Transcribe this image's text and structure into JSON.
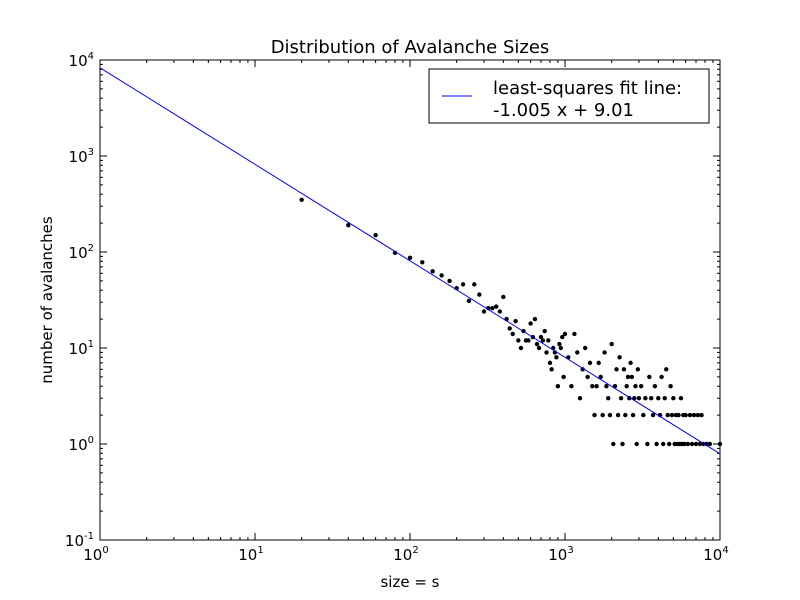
{
  "chart_data": {
    "type": "scatter",
    "title": "Distribution of Avalanche Sizes",
    "xlabel": "size = s",
    "ylabel": "number of avalanches",
    "xscale": "log",
    "yscale": "log",
    "xlim": [
      1,
      10000
    ],
    "ylim": [
      0.1,
      10000
    ],
    "x_ticks": [
      {
        "base": "10",
        "exp": "0",
        "value": 1
      },
      {
        "base": "10",
        "exp": "1",
        "value": 10
      },
      {
        "base": "10",
        "exp": "2",
        "value": 100
      },
      {
        "base": "10",
        "exp": "3",
        "value": 1000
      },
      {
        "base": "10",
        "exp": "4",
        "value": 10000
      }
    ],
    "y_ticks": [
      {
        "base": "10",
        "exp": "-1",
        "value": 0.1
      },
      {
        "base": "10",
        "exp": "0",
        "value": 1
      },
      {
        "base": "10",
        "exp": "1",
        "value": 10
      },
      {
        "base": "10",
        "exp": "2",
        "value": 100
      },
      {
        "base": "10",
        "exp": "3",
        "value": 1000
      },
      {
        "base": "10",
        "exp": "4",
        "value": 10000
      }
    ],
    "grid": false,
    "legend_position": "top-right",
    "colors": {
      "fit_line": "#0000ff",
      "points": "#000000"
    },
    "fit_line": {
      "legend_line1": "least-squares fit line:",
      "legend_line2": "-1.005 x + 9.01",
      "x": [
        1,
        10000
      ],
      "y": [
        8300,
        0.79
      ]
    },
    "points": [
      [
        20,
        350
      ],
      [
        40,
        190
      ],
      [
        60,
        150
      ],
      [
        80,
        98
      ],
      [
        100,
        87
      ],
      [
        120,
        78
      ],
      [
        140,
        63
      ],
      [
        160,
        57
      ],
      [
        180,
        50
      ],
      [
        200,
        42
      ],
      [
        220,
        46
      ],
      [
        240,
        31
      ],
      [
        260,
        46
      ],
      [
        280,
        36
      ],
      [
        300,
        24
      ],
      [
        320,
        26
      ],
      [
        340,
        26
      ],
      [
        360,
        27
      ],
      [
        380,
        24
      ],
      [
        400,
        34
      ],
      [
        420,
        20
      ],
      [
        440,
        16
      ],
      [
        460,
        14
      ],
      [
        480,
        19
      ],
      [
        500,
        12
      ],
      [
        520,
        10
      ],
      [
        540,
        15
      ],
      [
        560,
        12
      ],
      [
        580,
        12
      ],
      [
        600,
        18
      ],
      [
        620,
        13
      ],
      [
        640,
        20
      ],
      [
        660,
        11
      ],
      [
        680,
        10
      ],
      [
        700,
        13
      ],
      [
        720,
        12
      ],
      [
        740,
        15
      ],
      [
        760,
        9
      ],
      [
        780,
        12
      ],
      [
        800,
        7
      ],
      [
        820,
        6
      ],
      [
        840,
        10
      ],
      [
        860,
        9
      ],
      [
        880,
        8
      ],
      [
        900,
        4
      ],
      [
        920,
        11
      ],
      [
        940,
        10
      ],
      [
        960,
        13
      ],
      [
        980,
        5
      ],
      [
        1000,
        14
      ],
      [
        1050,
        8
      ],
      [
        1100,
        4
      ],
      [
        1150,
        14
      ],
      [
        1200,
        9
      ],
      [
        1250,
        3
      ],
      [
        1300,
        6
      ],
      [
        1350,
        10
      ],
      [
        1400,
        5
      ],
      [
        1450,
        7
      ],
      [
        1500,
        4
      ],
      [
        1550,
        2
      ],
      [
        1600,
        4
      ],
      [
        1650,
        7
      ],
      [
        1700,
        5
      ],
      [
        1750,
        2
      ],
      [
        1800,
        9
      ],
      [
        1850,
        4
      ],
      [
        1900,
        3
      ],
      [
        1950,
        2
      ],
      [
        2000,
        11
      ],
      [
        2050,
        1
      ],
      [
        2100,
        4
      ],
      [
        2150,
        6
      ],
      [
        2200,
        2
      ],
      [
        2250,
        8
      ],
      [
        2300,
        3
      ],
      [
        2350,
        1
      ],
      [
        2400,
        6
      ],
      [
        2450,
        2
      ],
      [
        2500,
        4
      ],
      [
        2550,
        5
      ],
      [
        2600,
        3
      ],
      [
        2650,
        7
      ],
      [
        2700,
        5
      ],
      [
        2750,
        2
      ],
      [
        2800,
        3
      ],
      [
        2850,
        4
      ],
      [
        2900,
        1
      ],
      [
        2950,
        6
      ],
      [
        3000,
        3
      ],
      [
        3100,
        4
      ],
      [
        3200,
        2
      ],
      [
        3300,
        3
      ],
      [
        3400,
        1
      ],
      [
        3500,
        5
      ],
      [
        3600,
        3
      ],
      [
        3700,
        2
      ],
      [
        3800,
        4
      ],
      [
        3900,
        1
      ],
      [
        4000,
        3
      ],
      [
        4100,
        2
      ],
      [
        4200,
        5
      ],
      [
        4300,
        1
      ],
      [
        4400,
        3
      ],
      [
        4500,
        6
      ],
      [
        4600,
        2
      ],
      [
        4700,
        1
      ],
      [
        4800,
        4
      ],
      [
        4900,
        2
      ],
      [
        5000,
        3
      ],
      [
        5100,
        1
      ],
      [
        5200,
        2
      ],
      [
        5300,
        1
      ],
      [
        5400,
        2
      ],
      [
        5500,
        1
      ],
      [
        5600,
        3
      ],
      [
        5700,
        1
      ],
      [
        5800,
        2
      ],
      [
        5900,
        1
      ],
      [
        6000,
        2
      ],
      [
        6200,
        1
      ],
      [
        6400,
        2
      ],
      [
        6600,
        1
      ],
      [
        6800,
        2
      ],
      [
        7000,
        1
      ],
      [
        7200,
        2
      ],
      [
        7400,
        1
      ],
      [
        7600,
        2
      ],
      [
        7800,
        1
      ],
      [
        8200,
        1
      ],
      [
        8600,
        1
      ],
      [
        10000,
        1
      ]
    ]
  }
}
